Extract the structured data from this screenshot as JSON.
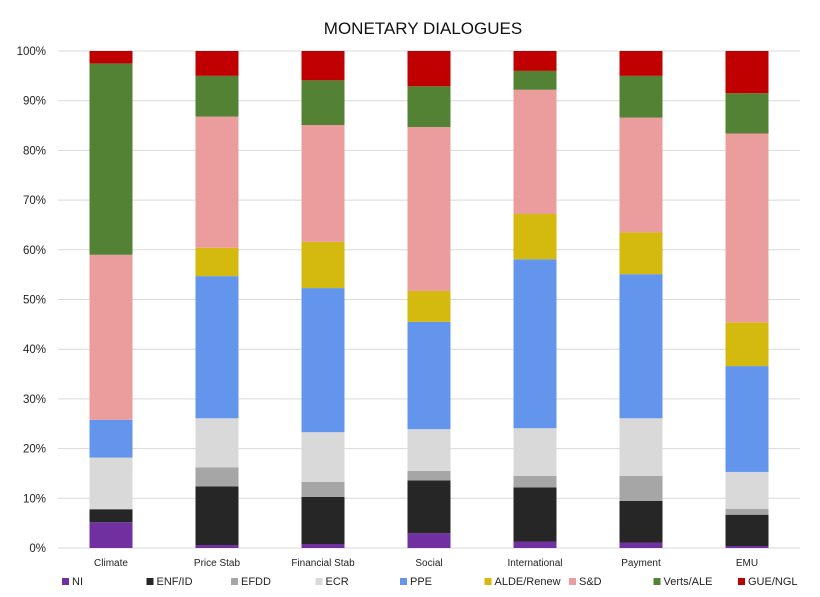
{
  "chart_data": {
    "type": "bar",
    "stacked": true,
    "percent": true,
    "title": "MONETARY DIALOGUES",
    "xlabel": "",
    "ylabel": "",
    "ylim": [
      0,
      100
    ],
    "yticks": [
      "0%",
      "10%",
      "20%",
      "30%",
      "40%",
      "50%",
      "60%",
      "70%",
      "80%",
      "90%",
      "100%"
    ],
    "categories": [
      "Climate",
      "Price Stab",
      "Financial Stab",
      "Social",
      "International",
      "Payment",
      "EMU"
    ],
    "legend_position": "bottom",
    "grid": true,
    "series": [
      {
        "name": "NI",
        "color": "#7030a0",
        "values": [
          5.2,
          0.6,
          0.8,
          3.0,
          1.3,
          1.1,
          0.4
        ]
      },
      {
        "name": "ENF/ID",
        "color": "#262626",
        "values": [
          2.6,
          11.8,
          9.5,
          10.6,
          10.9,
          8.4,
          6.3
        ]
      },
      {
        "name": "EFDD",
        "color": "#a6a6a6",
        "values": [
          0.0,
          3.8,
          3.0,
          1.9,
          2.3,
          5.0,
          1.2
        ]
      },
      {
        "name": "ECR",
        "color": "#d9d9d9",
        "values": [
          10.4,
          9.9,
          10.0,
          8.4,
          9.6,
          11.6,
          7.4
        ]
      },
      {
        "name": "PPE",
        "color": "#6495ed",
        "values": [
          7.6,
          28.6,
          29.0,
          21.6,
          34.0,
          29.0,
          21.3
        ]
      },
      {
        "name": "ALDE/Renew",
        "color": "#d4b90f",
        "values": [
          0.0,
          5.7,
          9.3,
          6.2,
          9.1,
          8.4,
          8.8
        ]
      },
      {
        "name": "S&D",
        "color": "#eb9c9c",
        "values": [
          33.2,
          26.4,
          23.5,
          33.0,
          25.0,
          23.1,
          38.0
        ]
      },
      {
        "name": "Verts/ALE",
        "color": "#548235",
        "values": [
          38.5,
          8.2,
          9.0,
          8.2,
          3.8,
          8.4,
          8.1
        ]
      },
      {
        "name": "GUE/NGL",
        "color": "#c00000",
        "values": [
          2.5,
          5.0,
          5.9,
          7.1,
          4.0,
          5.0,
          8.5
        ]
      }
    ]
  }
}
